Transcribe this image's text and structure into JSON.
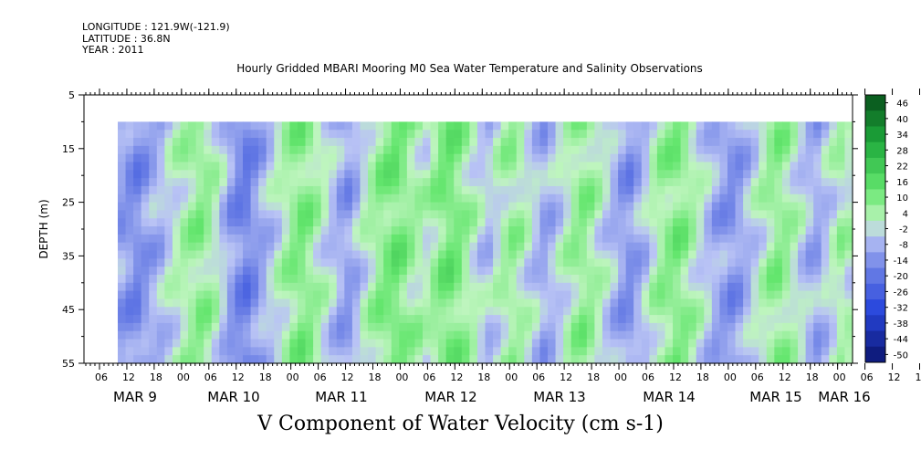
{
  "header": {
    "longitude": "LONGITUDE : 121.9W(-121.9)",
    "latitude": "LATITUDE : 36.8N",
    "year": "YEAR : 2011"
  },
  "chart_data": {
    "type": "heatmap",
    "title": "Hourly Gridded MBARI Mooring M0 Sea Water Temperature and Salinity Observations",
    "variable_title": "V Component of Water Velocity (cm s-1)",
    "ylabel": "DEPTH (m)",
    "y_ticks": [
      5,
      15,
      25,
      35,
      45,
      55
    ],
    "ylim": [
      55,
      5
    ],
    "y_reversed": true,
    "data_depth_range": [
      10,
      55
    ],
    "x_hour_ticks": [
      "06",
      "12",
      "18",
      "00",
      "06",
      "12",
      "18",
      "00",
      "06",
      "12",
      "18",
      "00",
      "06",
      "12",
      "18",
      "00",
      "06",
      "12",
      "18",
      "00",
      "06",
      "12",
      "18",
      "00",
      "06",
      "12",
      "18",
      "00",
      "06",
      "12",
      "18",
      "00"
    ],
    "x_day_labels": [
      "MAR  9",
      "MAR 10",
      "MAR 11",
      "MAR 12",
      "MAR 13",
      "MAR 14",
      "MAR 15",
      "MAR 16"
    ],
    "colorbar": {
      "labels": [
        "46",
        "40",
        "34",
        "28",
        "22",
        "16",
        "10",
        "4",
        "-2",
        "-8",
        "-14",
        "-20",
        "-26",
        "-32",
        "-38",
        "-44",
        "-50"
      ],
      "min": -50,
      "max": 50
    },
    "column_mean_v": [
      -8,
      -10,
      -12,
      -9,
      -6,
      -4,
      0,
      3,
      6,
      8,
      10,
      8,
      4,
      -2,
      -8,
      -12,
      -14,
      -10,
      -6,
      -2,
      2,
      6,
      10,
      12,
      10,
      6,
      2,
      -2,
      -6,
      -8,
      -4,
      2,
      6,
      10,
      12,
      14,
      12,
      8,
      6,
      4,
      8,
      12,
      14,
      12,
      8,
      4,
      0,
      -2,
      2,
      6,
      8,
      6,
      2,
      -2,
      -6,
      -4,
      0,
      4,
      8,
      10,
      8,
      4,
      0,
      -4,
      -8,
      -10,
      -6,
      -2,
      4,
      8,
      10,
      12,
      10,
      6,
      2,
      -2,
      -6,
      -8,
      -10,
      -8,
      -4,
      0,
      4,
      8,
      10,
      8,
      4,
      0,
      -4,
      -6,
      -2,
      2,
      6,
      4
    ]
  }
}
